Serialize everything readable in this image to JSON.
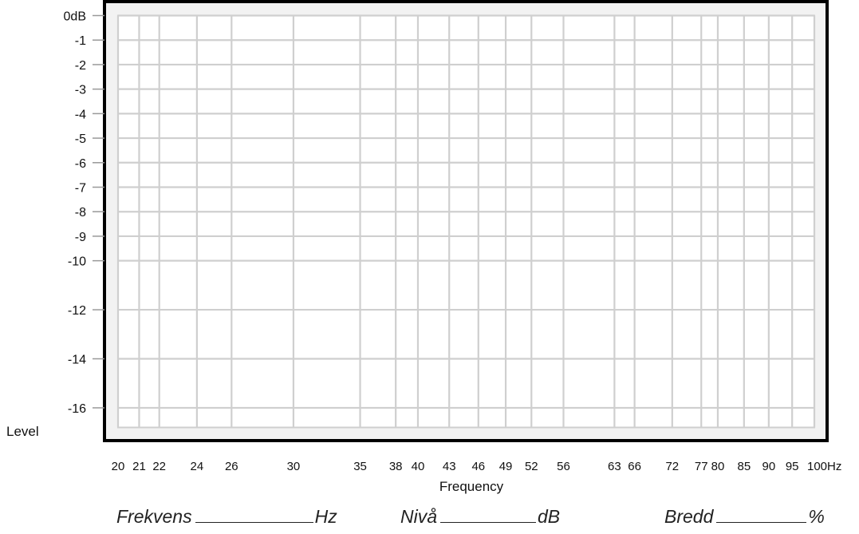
{
  "chart_data": {
    "type": "line",
    "xlabel": "Frequency",
    "ylabel": "Level",
    "x_scale": "log",
    "xlim": [
      20,
      100
    ],
    "ylim": [
      -16.8,
      0
    ],
    "x_ticks": [
      20,
      21,
      22,
      24,
      26,
      30,
      35,
      38,
      40,
      43,
      46,
      49,
      52,
      56,
      63,
      66,
      72,
      77,
      80,
      85,
      90,
      95,
      100
    ],
    "x_tick_labels": [
      "20",
      "21",
      "22",
      "24",
      "26",
      "30",
      "35",
      "38",
      "40",
      "43",
      "46",
      "49",
      "52",
      "56",
      "63",
      "66",
      "72",
      "77",
      "80",
      "85",
      "90",
      "95",
      "100Hz"
    ],
    "y_ticks": [
      0,
      -1,
      -2,
      -3,
      -4,
      -5,
      -6,
      -7,
      -8,
      -9,
      -10,
      -12,
      -14,
      -16
    ],
    "y_tick_labels": [
      "0dB",
      "-1",
      "-2",
      "-3",
      "-4",
      "-5",
      "-6",
      "-7",
      "-8",
      "-9",
      "-10",
      "-12",
      "-14",
      "-16"
    ],
    "grid": true,
    "series": []
  },
  "form": {
    "frequency_label": "Frekvens",
    "frequency_unit": "Hz",
    "level_label": "Nivå",
    "level_unit": "dB",
    "width_label": "Bredd",
    "width_unit": "%"
  },
  "colors": {
    "plot_background": "#f2f2f2",
    "grid": "#cfcfcf",
    "frame": "#000000"
  }
}
